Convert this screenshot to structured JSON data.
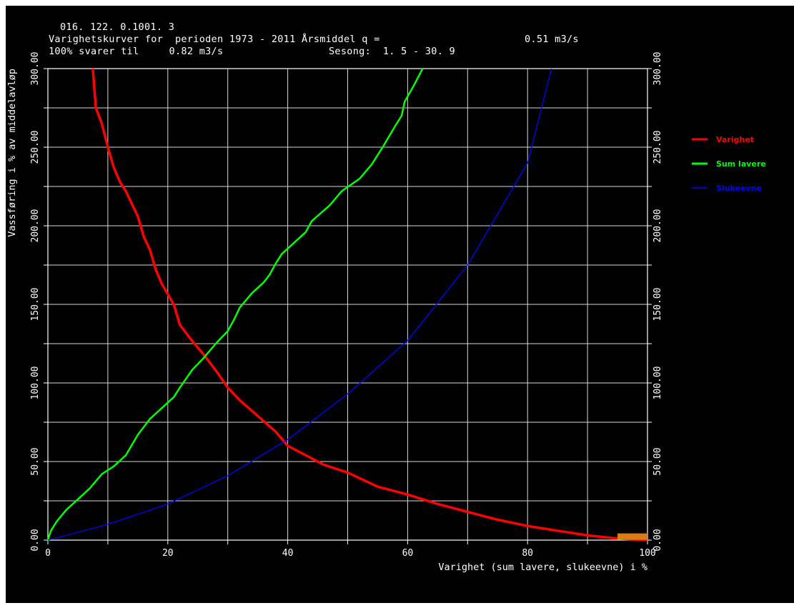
{
  "header": {
    "line1": "016. 122. 0.1001. 3",
    "line2a": "Varighetskurver for  perioden 1973 - 2011 Årsmiddel q =",
    "line2b": "0.51 m3/s",
    "line3a": "100% svarer til     0.82 m3/s",
    "line3b": "Sesong:  1. 5 - 30. 9"
  },
  "chart_data": {
    "type": "line",
    "title": "Varighetskurver for  perioden 1973 - 2011",
    "xlabel": "Varighet (sum lavere, slukeevne) i %",
    "ylabel": "Vassføring i % av middelavløp",
    "xlim": [
      0,
      100
    ],
    "ylim": [
      0,
      300
    ],
    "x_ticks": [
      "0",
      "20",
      "40",
      "60",
      "80",
      "100"
    ],
    "y_ticks": [
      "0.00",
      "50.00",
      "100.00",
      "150.00",
      "200.00",
      "250.00",
      "300.00"
    ],
    "grid": true,
    "legend_position": "right",
    "series": [
      {
        "name": "Varighet",
        "color": "#ff0000",
        "points": [
          [
            7.5,
            300
          ],
          [
            8,
            275
          ],
          [
            9,
            265
          ],
          [
            10,
            250
          ],
          [
            11,
            237
          ],
          [
            12,
            228
          ],
          [
            13,
            222
          ],
          [
            15,
            206
          ],
          [
            16,
            193
          ],
          [
            17,
            185
          ],
          [
            18,
            172
          ],
          [
            19,
            163
          ],
          [
            21,
            150
          ],
          [
            22,
            137
          ],
          [
            24,
            127
          ],
          [
            26,
            118
          ],
          [
            28,
            108
          ],
          [
            30,
            97
          ],
          [
            32,
            89
          ],
          [
            35,
            79
          ],
          [
            38,
            69
          ],
          [
            40,
            60
          ],
          [
            43,
            54
          ],
          [
            46,
            48
          ],
          [
            50,
            43
          ],
          [
            55,
            34
          ],
          [
            60,
            29
          ],
          [
            65,
            23
          ],
          [
            70,
            18
          ],
          [
            75,
            13
          ],
          [
            80,
            9
          ],
          [
            85,
            6
          ],
          [
            90,
            3
          ],
          [
            95,
            1
          ],
          [
            100,
            0
          ]
        ]
      },
      {
        "name": "Sum lavere",
        "color": "#00ff00",
        "points": [
          [
            0,
            0
          ],
          [
            0.5,
            6
          ],
          [
            1.5,
            12
          ],
          [
            3,
            19
          ],
          [
            5,
            26
          ],
          [
            7,
            33
          ],
          [
            9,
            42
          ],
          [
            11,
            47
          ],
          [
            13,
            54
          ],
          [
            15,
            67
          ],
          [
            17,
            77
          ],
          [
            19,
            84
          ],
          [
            21,
            91
          ],
          [
            22,
            97
          ],
          [
            24,
            108
          ],
          [
            26,
            116
          ],
          [
            28,
            125
          ],
          [
            30,
            133
          ],
          [
            31,
            140
          ],
          [
            32,
            148
          ],
          [
            34,
            157
          ],
          [
            36,
            164
          ],
          [
            37,
            169
          ],
          [
            38,
            176
          ],
          [
            39,
            182
          ],
          [
            41,
            189
          ],
          [
            43,
            196
          ],
          [
            44,
            203
          ],
          [
            47,
            213
          ],
          [
            49,
            222
          ],
          [
            52,
            230
          ],
          [
            54,
            239
          ],
          [
            56,
            251
          ],
          [
            58,
            264
          ],
          [
            59,
            270
          ],
          [
            59.5,
            279
          ],
          [
            61,
            289
          ],
          [
            62.5,
            300
          ]
        ]
      },
      {
        "name": "Slukeevne",
        "color": "#0000ff",
        "points": [
          [
            0,
            0
          ],
          [
            10,
            10
          ],
          [
            20,
            23
          ],
          [
            30,
            41
          ],
          [
            40,
            64
          ],
          [
            50,
            93
          ],
          [
            60,
            127
          ],
          [
            70,
            175
          ],
          [
            80,
            240
          ],
          [
            84,
            300
          ]
        ]
      }
    ],
    "annotations": [
      {
        "type": "marker",
        "x": 97.5,
        "y": 2,
        "color": "#d97c17"
      }
    ]
  }
}
